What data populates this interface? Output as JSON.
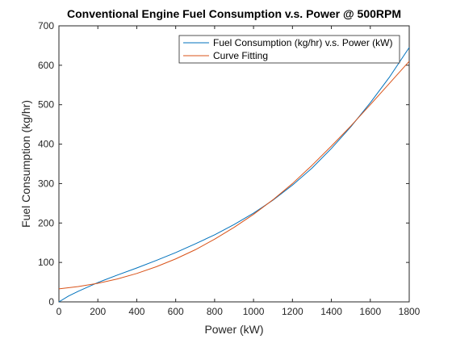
{
  "chart_data": {
    "type": "line",
    "title": "Conventional Engine Fuel Consumption v.s. Power @ 500RPM",
    "xlabel": "Power (kW)",
    "ylabel": "Fuel Consumption (kg/hr)",
    "xlim": [
      0,
      1800
    ],
    "ylim": [
      0,
      700
    ],
    "xticks": [
      0,
      200,
      400,
      600,
      800,
      1000,
      1200,
      1400,
      1600,
      1800
    ],
    "yticks": [
      0,
      100,
      200,
      300,
      400,
      500,
      600,
      700
    ],
    "grid": false,
    "legend_position": "top-right",
    "series": [
      {
        "name": "Fuel Consumption (kg/hr) v.s. Power (kW)",
        "color": "#0072BD",
        "x": [
          0,
          50,
          100,
          200,
          300,
          400,
          500,
          600,
          700,
          800,
          900,
          1000,
          1100,
          1200,
          1300,
          1400,
          1500,
          1600,
          1700,
          1800
        ],
        "y": [
          0,
          15,
          27,
          49,
          68,
          86,
          105,
          125,
          147,
          170,
          196,
          225,
          258,
          296,
          339,
          389,
          444,
          505,
          571,
          645
        ]
      },
      {
        "name": "Curve Fitting",
        "color": "#D95319",
        "x": [
          0,
          100,
          200,
          300,
          400,
          500,
          600,
          700,
          800,
          900,
          1000,
          1100,
          1200,
          1300,
          1400,
          1500,
          1600,
          1700,
          1800
        ],
        "y": [
          33,
          39,
          47,
          58,
          72,
          89,
          109,
          132,
          159,
          189,
          222,
          259,
          300,
          346,
          395,
          446,
          500,
          555,
          610
        ]
      }
    ]
  }
}
